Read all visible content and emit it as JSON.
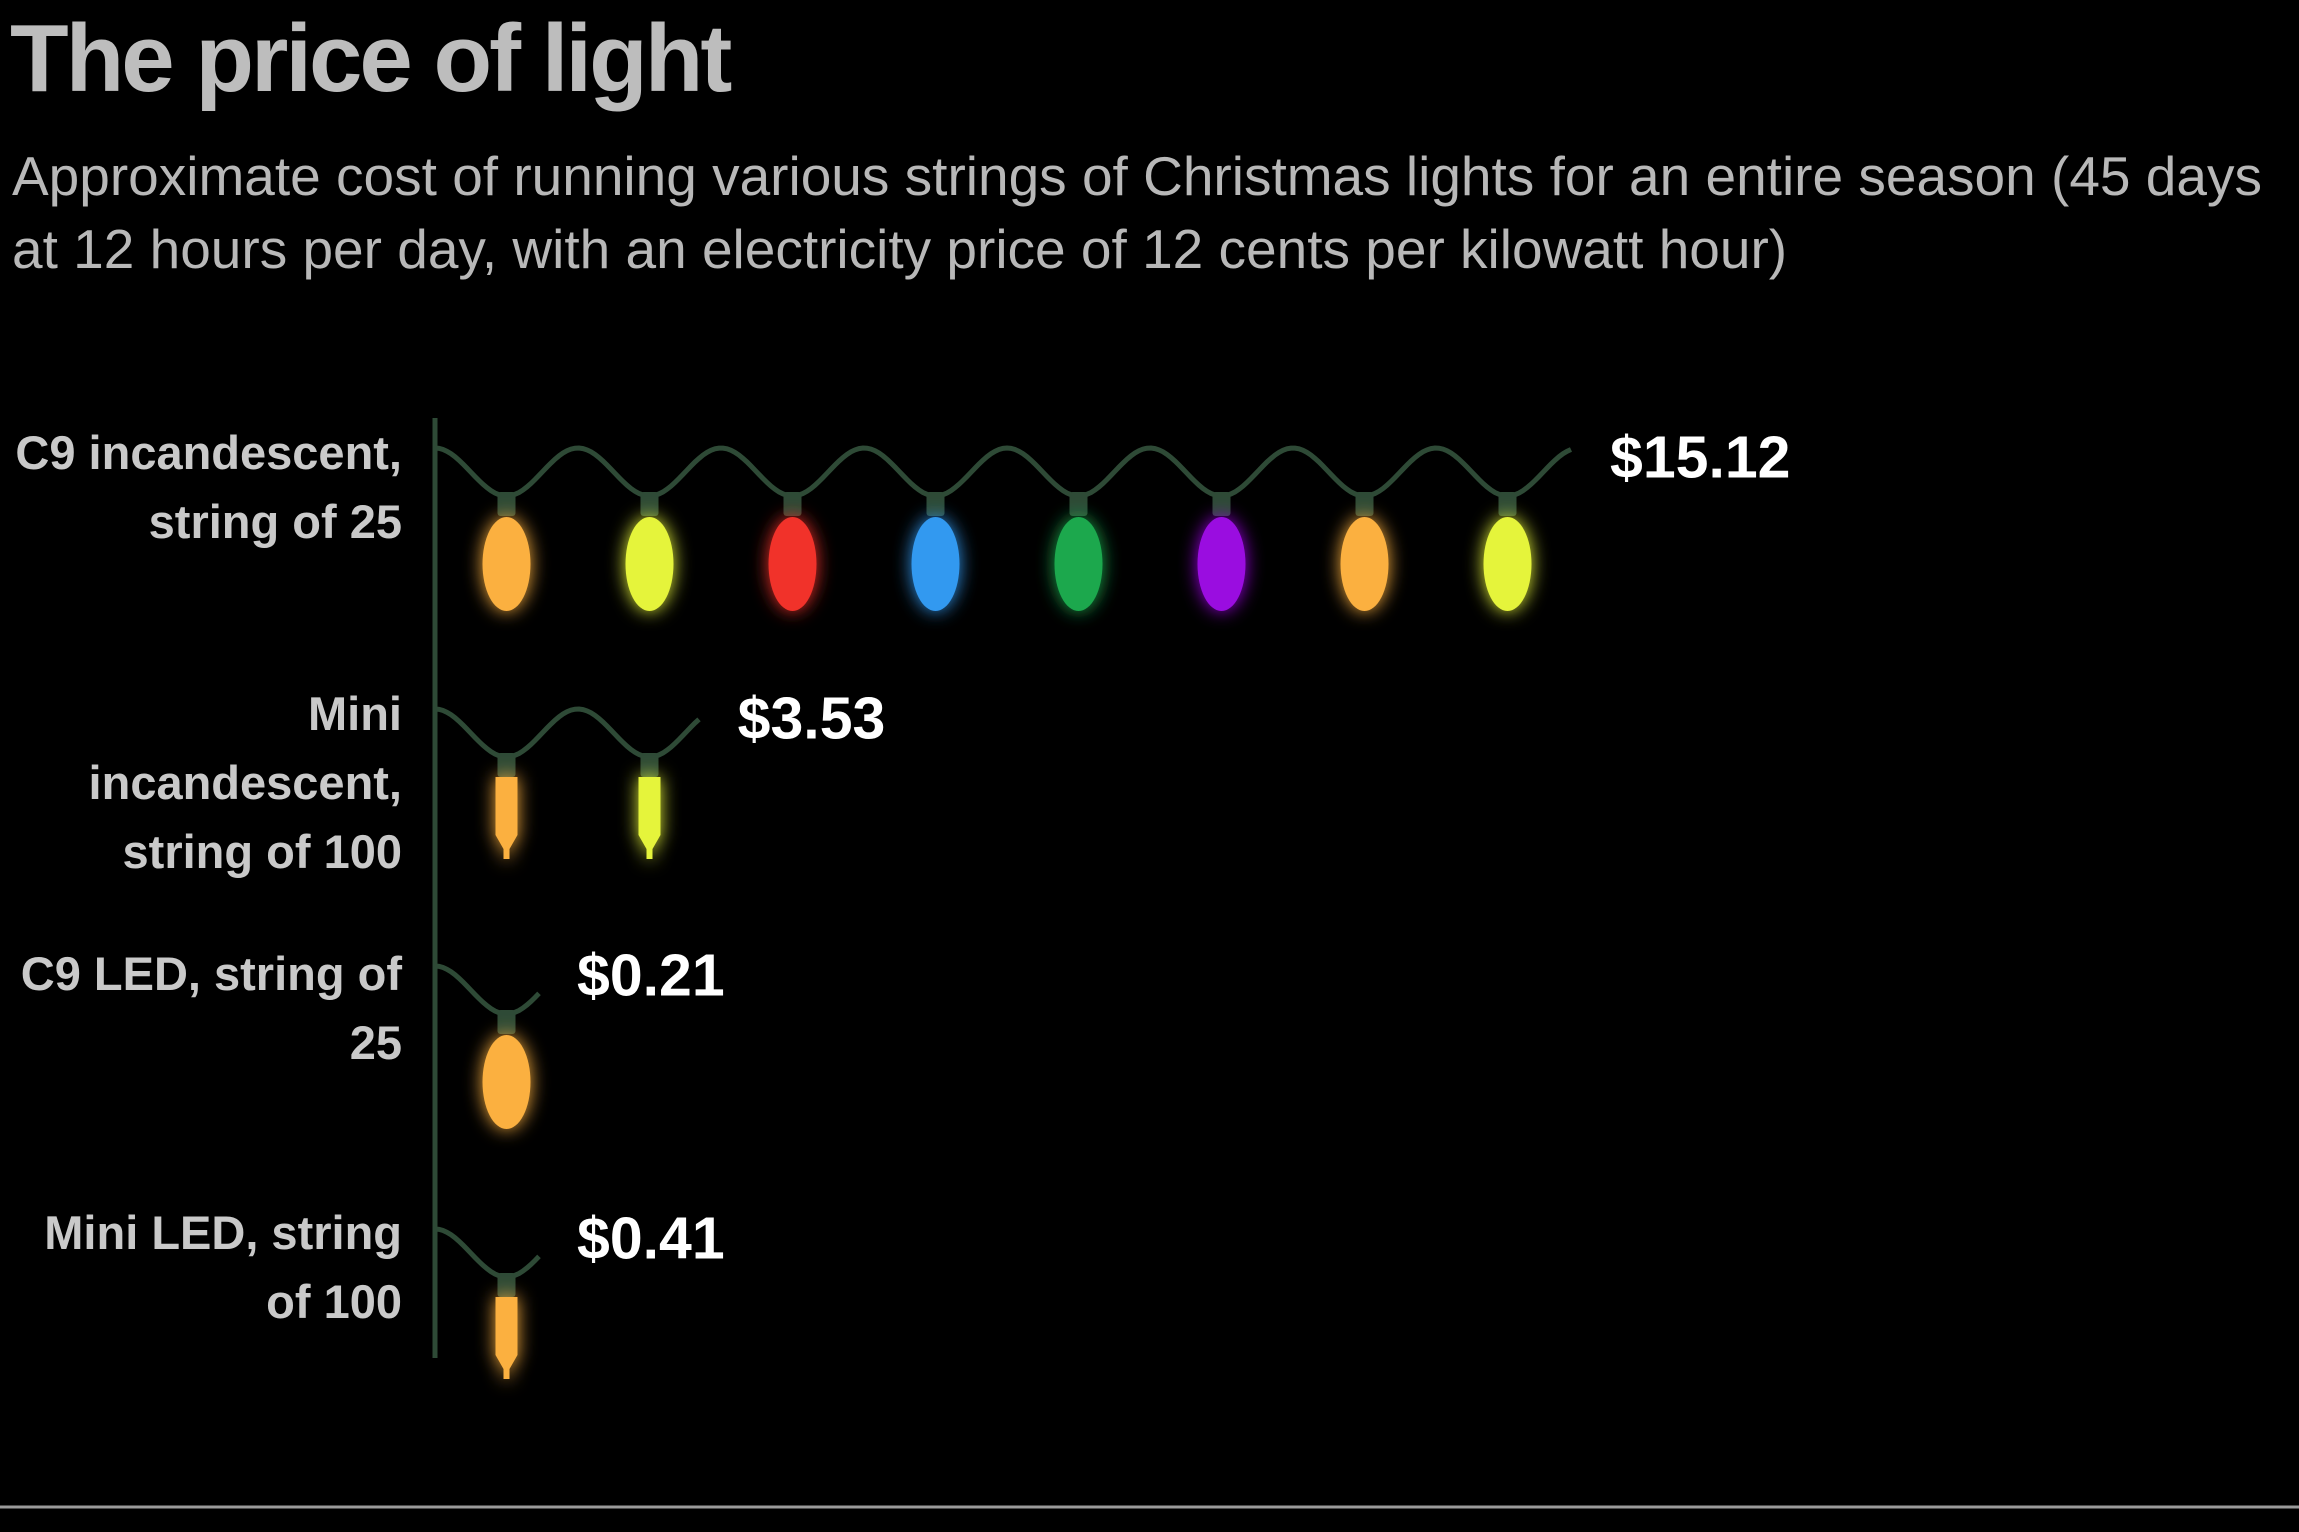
{
  "chart_data": {
    "type": "bar",
    "title": "The price of light",
    "subtitle": "Approximate cost of running various strings of Christmas lights for an entire season (45 days at 12 hours per day, with an electricity price of 12 cents per kilowatt hour)",
    "categories": [
      "C9 incandescent, string of 25",
      "Mini incandescent, string of 100",
      "C9 LED, string of 25",
      "Mini LED, string of 100"
    ],
    "values": [
      15.12,
      3.53,
      0.21,
      0.41
    ],
    "value_labels": [
      "$15.12",
      "$3.53",
      "$0.21",
      "$0.41"
    ],
    "colors": [
      "#fbb040",
      "#e5f43a",
      "#f1302a",
      "#3399f0",
      "#1ba84e",
      "#9a0ee0"
    ],
    "wire_color": "#2e4a36"
  }
}
